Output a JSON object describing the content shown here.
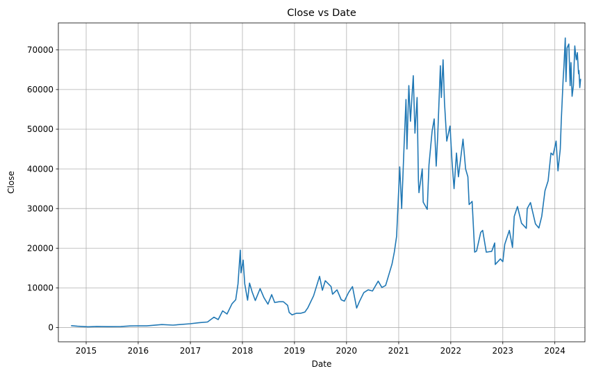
{
  "chart_data": {
    "type": "line",
    "title": "Close vs Date",
    "xlabel": "Date",
    "ylabel": "Close",
    "x_ticks": [
      "2015",
      "2016",
      "2017",
      "2018",
      "2019",
      "2020",
      "2021",
      "2022",
      "2023",
      "2024"
    ],
    "y_ticks": [
      "0",
      "10000",
      "20000",
      "30000",
      "40000",
      "50000",
      "60000",
      "70000"
    ],
    "xlim": [
      "2014-06-20",
      "2024-07-30"
    ],
    "ylim": [
      -3600,
      76800
    ],
    "grid": true,
    "series_color": "#1f77b4",
    "series": [
      {
        "points": [
          [
            "2014-09-17",
            457
          ],
          [
            "2014-11-01",
            330
          ],
          [
            "2015-01-14",
            180
          ],
          [
            "2015-03-15",
            270
          ],
          [
            "2015-06-01",
            225
          ],
          [
            "2015-09-01",
            230
          ],
          [
            "2015-11-04",
            400
          ],
          [
            "2016-01-01",
            430
          ],
          [
            "2016-03-01",
            420
          ],
          [
            "2016-06-15",
            750
          ],
          [
            "2016-09-01",
            600
          ],
          [
            "2016-12-31",
            960
          ],
          [
            "2017-03-01",
            1200
          ],
          [
            "2017-05-01",
            1400
          ],
          [
            "2017-06-15",
            2600
          ],
          [
            "2017-07-15",
            2000
          ],
          [
            "2017-08-15",
            4200
          ],
          [
            "2017-09-15",
            3400
          ],
          [
            "2017-10-20",
            6000
          ],
          [
            "2017-11-15",
            7000
          ],
          [
            "2017-12-01",
            11000
          ],
          [
            "2017-12-17",
            19500
          ],
          [
            "2017-12-22",
            13800
          ],
          [
            "2018-01-06",
            17000
          ],
          [
            "2018-01-17",
            11000
          ],
          [
            "2018-02-06",
            6900
          ],
          [
            "2018-02-20",
            11200
          ],
          [
            "2018-03-10",
            9000
          ],
          [
            "2018-04-01",
            6800
          ],
          [
            "2018-05-05",
            9800
          ],
          [
            "2018-06-01",
            7500
          ],
          [
            "2018-06-29",
            5900
          ],
          [
            "2018-07-25",
            8300
          ],
          [
            "2018-08-15",
            6300
          ],
          [
            "2018-09-15",
            6500
          ],
          [
            "2018-10-15",
            6500
          ],
          [
            "2018-11-14",
            5600
          ],
          [
            "2018-11-25",
            3800
          ],
          [
            "2018-12-15",
            3200
          ],
          [
            "2019-01-15",
            3600
          ],
          [
            "2019-02-15",
            3600
          ],
          [
            "2019-03-15",
            3900
          ],
          [
            "2019-04-05",
            5000
          ],
          [
            "2019-05-15",
            8000
          ],
          [
            "2019-06-26",
            12900
          ],
          [
            "2019-07-16",
            9400
          ],
          [
            "2019-08-05",
            11800
          ],
          [
            "2019-09-15",
            10300
          ],
          [
            "2019-09-25",
            8400
          ],
          [
            "2019-10-26",
            9500
          ],
          [
            "2019-11-25",
            7000
          ],
          [
            "2019-12-17",
            6640
          ],
          [
            "2020-01-15",
            8800
          ],
          [
            "2020-02-12",
            10300
          ],
          [
            "2020-03-12",
            4900
          ],
          [
            "2020-04-01",
            6600
          ],
          [
            "2020-05-01",
            8800
          ],
          [
            "2020-06-01",
            9500
          ],
          [
            "2020-07-01",
            9200
          ],
          [
            "2020-08-10",
            11700
          ],
          [
            "2020-09-05",
            10100
          ],
          [
            "2020-10-01",
            10600
          ],
          [
            "2020-10-21",
            13000
          ],
          [
            "2020-11-15",
            16000
          ],
          [
            "2020-12-01",
            19000
          ],
          [
            "2020-12-17",
            23000
          ],
          [
            "2021-01-08",
            40500
          ],
          [
            "2021-01-22",
            30000
          ],
          [
            "2021-02-08",
            46000
          ],
          [
            "2021-02-21",
            57500
          ],
          [
            "2021-02-28",
            45000
          ],
          [
            "2021-03-13",
            61000
          ],
          [
            "2021-03-24",
            52000
          ],
          [
            "2021-04-13",
            63500
          ],
          [
            "2021-04-25",
            49000
          ],
          [
            "2021-05-10",
            58000
          ],
          [
            "2021-05-19",
            37000
          ],
          [
            "2021-05-23",
            34000
          ],
          [
            "2021-06-15",
            40000
          ],
          [
            "2021-06-22",
            31600
          ],
          [
            "2021-07-20",
            29800
          ],
          [
            "2021-08-01",
            41000
          ],
          [
            "2021-08-23",
            49500
          ],
          [
            "2021-09-07",
            52600
          ],
          [
            "2021-09-21",
            40700
          ],
          [
            "2021-10-01",
            48000
          ],
          [
            "2021-10-20",
            66000
          ],
          [
            "2021-10-27",
            58000
          ],
          [
            "2021-11-08",
            67500
          ],
          [
            "2021-11-18",
            56800
          ],
          [
            "2021-12-04",
            47000
          ],
          [
            "2021-12-27",
            50800
          ],
          [
            "2022-01-10",
            41800
          ],
          [
            "2022-01-24",
            35000
          ],
          [
            "2022-02-10",
            44000
          ],
          [
            "2022-02-24",
            38000
          ],
          [
            "2022-03-28",
            47500
          ],
          [
            "2022-04-15",
            40000
          ],
          [
            "2022-05-01",
            38000
          ],
          [
            "2022-05-10",
            31000
          ],
          [
            "2022-05-31",
            31800
          ],
          [
            "2022-06-13",
            22500
          ],
          [
            "2022-06-18",
            19000
          ],
          [
            "2022-07-01",
            19300
          ],
          [
            "2022-07-30",
            24000
          ],
          [
            "2022-08-13",
            24500
          ],
          [
            "2022-09-07",
            19000
          ],
          [
            "2022-10-15",
            19200
          ],
          [
            "2022-11-05",
            21300
          ],
          [
            "2022-11-09",
            15900
          ],
          [
            "2022-12-15",
            17300
          ],
          [
            "2023-01-01",
            16600
          ],
          [
            "2023-01-15",
            21000
          ],
          [
            "2023-02-16",
            24500
          ],
          [
            "2023-03-10",
            20200
          ],
          [
            "2023-03-22",
            28000
          ],
          [
            "2023-04-14",
            30500
          ],
          [
            "2023-05-12",
            26300
          ],
          [
            "2023-06-15",
            25000
          ],
          [
            "2023-06-21",
            30000
          ],
          [
            "2023-07-14",
            31500
          ],
          [
            "2023-08-18",
            26100
          ],
          [
            "2023-09-11",
            25100
          ],
          [
            "2023-10-01",
            28000
          ],
          [
            "2023-10-24",
            34500
          ],
          [
            "2023-11-15",
            37000
          ],
          [
            "2023-12-05",
            44000
          ],
          [
            "2023-12-20",
            43500
          ],
          [
            "2024-01-10",
            47000
          ],
          [
            "2024-01-23",
            39500
          ],
          [
            "2024-02-08",
            45000
          ],
          [
            "2024-02-15",
            52000
          ],
          [
            "2024-02-28",
            62500
          ],
          [
            "2024-03-05",
            66000
          ],
          [
            "2024-03-14",
            73000
          ],
          [
            "2024-03-19",
            62000
          ],
          [
            "2024-03-27",
            70500
          ],
          [
            "2024-04-08",
            71500
          ],
          [
            "2024-04-17",
            61000
          ],
          [
            "2024-04-23",
            66800
          ],
          [
            "2024-05-01",
            58300
          ],
          [
            "2024-05-10",
            61000
          ],
          [
            "2024-05-20",
            71000
          ],
          [
            "2024-05-25",
            69000
          ],
          [
            "2024-05-31",
            67500
          ],
          [
            "2024-06-07",
            69300
          ],
          [
            "2024-06-15",
            64000
          ],
          [
            "2024-06-18",
            64800
          ],
          [
            "2024-06-24",
            60500
          ],
          [
            "2024-06-30",
            62700
          ]
        ]
      }
    ]
  }
}
